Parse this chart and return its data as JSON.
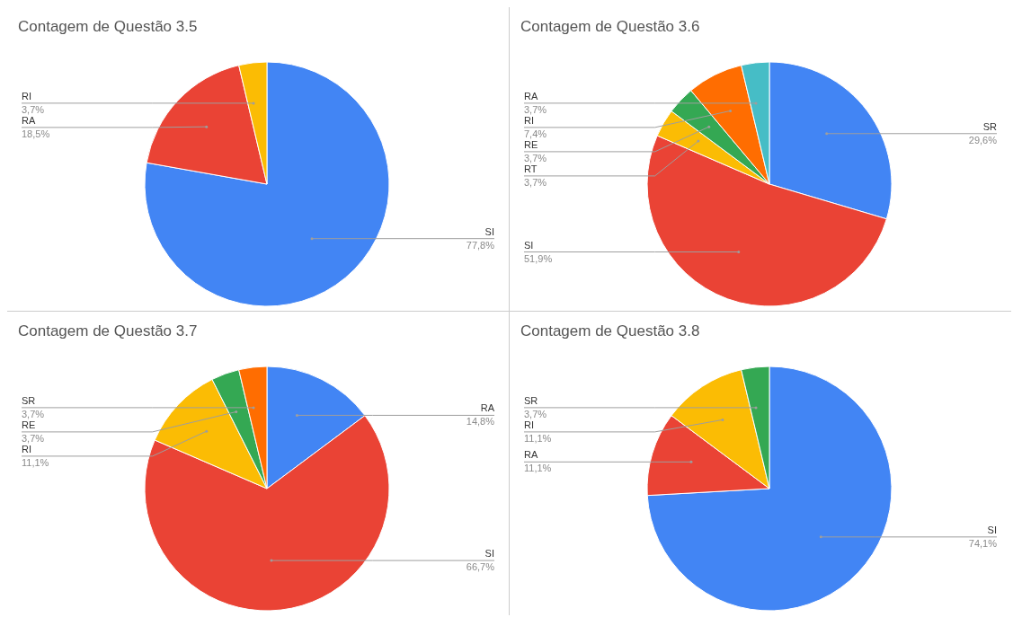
{
  "chart_data": [
    {
      "type": "pie",
      "title": "Contagem de Questão 3.5",
      "categories": [
        "SI",
        "RA",
        "RI"
      ],
      "values": [
        77.8,
        18.5,
        3.7
      ],
      "colors": [
        "#4285f4",
        "#ea4335",
        "#fbbc04"
      ],
      "value_labels": [
        "77,8%",
        "18,5%",
        "3,7%"
      ]
    },
    {
      "type": "pie",
      "title": "Contagem de Questão 3.6",
      "categories": [
        "SR",
        "SI",
        "RT",
        "RE",
        "RI",
        "RA"
      ],
      "values": [
        29.6,
        51.9,
        3.7,
        3.7,
        7.4,
        3.7
      ],
      "colors": [
        "#4285f4",
        "#ea4335",
        "#fbbc04",
        "#34a853",
        "#ff6d01",
        "#46bdc6"
      ],
      "value_labels": [
        "29,6%",
        "51,9%",
        "3,7%",
        "3,7%",
        "7,4%",
        "3,7%"
      ]
    },
    {
      "type": "pie",
      "title": "Contagem de Questão 3.7",
      "categories": [
        "RA",
        "SI",
        "RI",
        "RE",
        "SR"
      ],
      "values": [
        14.8,
        66.7,
        11.1,
        3.7,
        3.7
      ],
      "colors": [
        "#4285f4",
        "#ea4335",
        "#fbbc04",
        "#34a853",
        "#ff6d01"
      ],
      "value_labels": [
        "14,8%",
        "66,7%",
        "11,1%",
        "3,7%",
        "3,7%"
      ]
    },
    {
      "type": "pie",
      "title": "Contagem de Questão 3.8",
      "categories": [
        "SI",
        "RA",
        "RI",
        "SR"
      ],
      "values": [
        74.1,
        11.1,
        11.1,
        3.7
      ],
      "colors": [
        "#4285f4",
        "#ea4335",
        "#fbbc04",
        "#34a853"
      ],
      "value_labels": [
        "74,1%",
        "11,1%",
        "11,1%",
        "3,7%"
      ]
    }
  ]
}
